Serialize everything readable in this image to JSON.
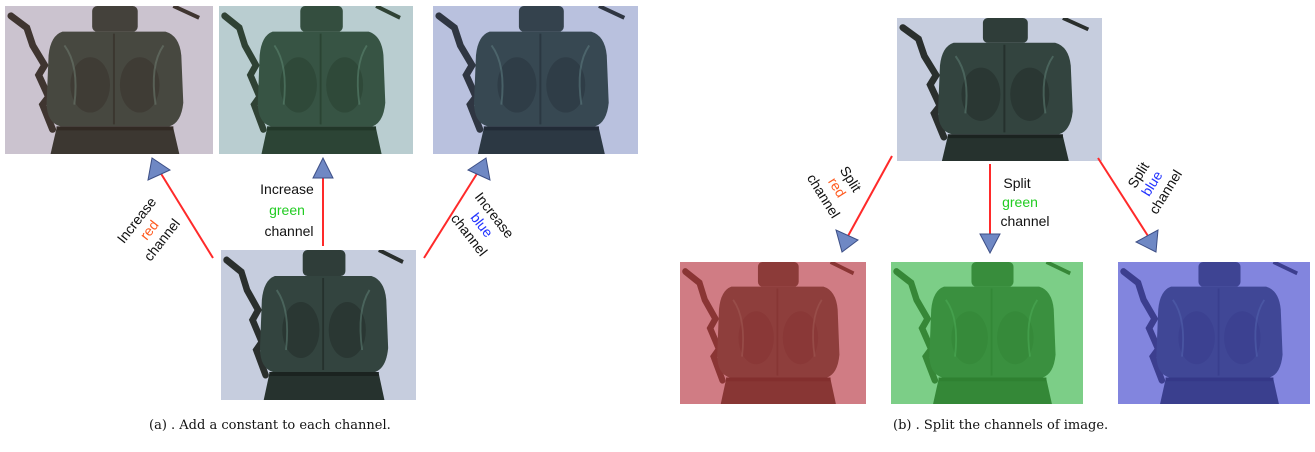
{
  "panel_a": {
    "caption": "(a) . Add a constant to each channel.",
    "labels": {
      "red": {
        "line1": "Increase",
        "color_word": "red",
        "line3": "channel"
      },
      "green": {
        "line1": "Increase",
        "color_word": "green",
        "line3": "channel"
      },
      "blue": {
        "line1": "Increase",
        "color_word": "blue",
        "line3": "channel"
      }
    }
  },
  "panel_b": {
    "caption": "(b) . Split the channels of image.",
    "labels": {
      "red": {
        "line1": "Split",
        "color_word": "red",
        "line3": "channel"
      },
      "green": {
        "line1": "Split",
        "color_word": "green",
        "line3": "channel"
      },
      "blue": {
        "line1": "Split",
        "color_word": "blue",
        "line3": "channel"
      }
    }
  },
  "colors": {
    "red_word": "#ff5a1f",
    "green_word": "#22cc22",
    "blue_word": "#2233ff",
    "arrow_line": "#ff2a2a",
    "arrow_head": "#6f88c4",
    "tint_red": "#d83a3a",
    "tint_green": "#3fcf3f",
    "tint_blue": "#4a4adf",
    "photo_bg": "#cdd3e2",
    "beetle": "#2c3a36"
  }
}
